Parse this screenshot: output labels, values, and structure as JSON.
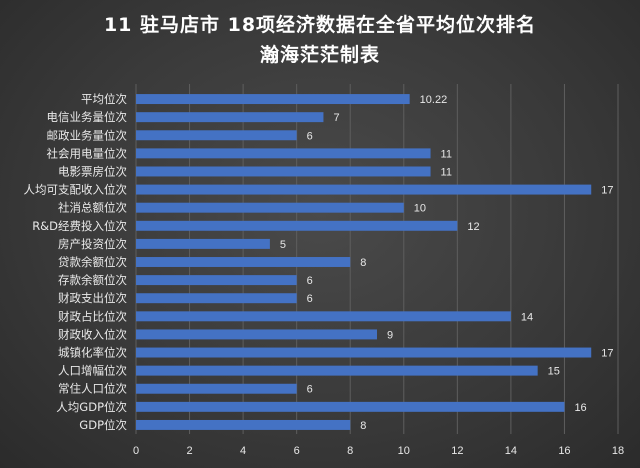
{
  "chart_data": {
    "type": "bar",
    "orientation": "horizontal",
    "title": "11 驻马店市 18项经济数据在全省平均位次排名",
    "subtitle": "瀚海茫茫制表",
    "categories": [
      "平均位次",
      "电信业务量位次",
      "邮政业务量位次",
      "社会用电量位次",
      "电影票房位次",
      "人均可支配收入位次",
      "社消总额位次",
      "R&D经费投入位次",
      "房产投资位次",
      "贷款余额位次",
      "存款余额位次",
      "财政支出位次",
      "财政占比位次",
      "财政收入位次",
      "城镇化率位次",
      "人口增幅位次",
      "常住人口位次",
      "人均GDP位次",
      "GDP位次"
    ],
    "values": [
      10.22,
      7,
      6,
      11,
      11,
      17,
      10,
      12,
      5,
      8,
      6,
      6,
      14,
      9,
      17,
      15,
      6,
      16,
      8
    ],
    "data_labels": [
      "10.22",
      "7",
      "6",
      "11",
      "11",
      "17",
      "10",
      "12",
      "5",
      "8",
      "6",
      "6",
      "14",
      "9",
      "17",
      "15",
      "6",
      "16",
      "8"
    ],
    "xlim": [
      0,
      18
    ],
    "xticks": [
      0,
      2,
      4,
      6,
      8,
      10,
      12,
      14,
      16,
      18
    ],
    "grid": true,
    "bar_color": "#4472c4"
  }
}
